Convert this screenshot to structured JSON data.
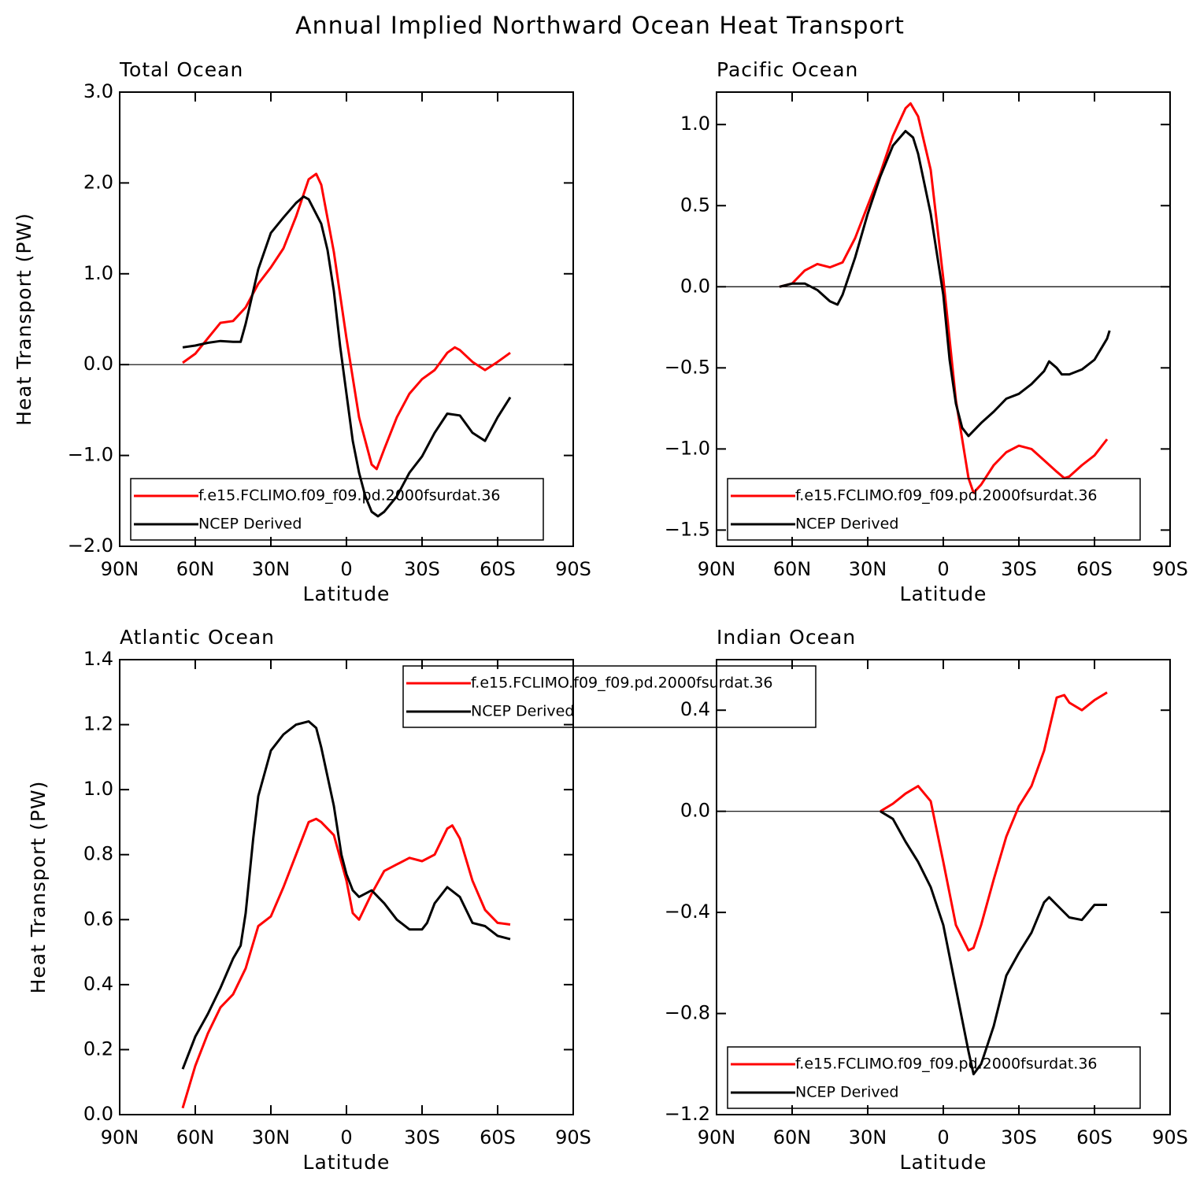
{
  "title": "Annual Implied Northward Ocean Heat Transport",
  "chart_data": [
    {
      "type": "line",
      "title": "Total Ocean",
      "x_label": "Latitude",
      "y_label": "Heat Transport (PW)",
      "xlim": [
        90,
        -90
      ],
      "xticks": [
        {
          "value": 90,
          "label": "90N"
        },
        {
          "value": 60,
          "label": "60N"
        },
        {
          "value": 30,
          "label": "30N"
        },
        0,
        {
          "value": -30,
          "label": "30S"
        },
        {
          "value": -60,
          "label": "60S"
        },
        {
          "value": -90,
          "label": "90S"
        }
      ],
      "ylim": [
        -2,
        3
      ],
      "yticks": [
        {
          "value": -2,
          "label": "−2.0"
        },
        {
          "value": -1,
          "label": "−1.0"
        },
        {
          "value": 0,
          "label": "0.0"
        },
        {
          "value": 1,
          "label": "1.0"
        },
        {
          "value": 2,
          "label": "2.0"
        },
        {
          "value": 3,
          "label": "3.0"
        }
      ],
      "zero_line": true,
      "legend": "lower-left",
      "series": [
        {
          "name": "f.e15.FCLIMO.f09_f09.pd.2000fsurdat.36",
          "color": "#ff0000",
          "x": [
            65,
            60,
            55,
            50,
            45,
            40,
            35,
            30,
            25,
            20,
            15,
            12,
            10,
            5,
            0,
            -5,
            -10,
            -12,
            -15,
            -20,
            -25,
            -30,
            -35,
            -40,
            -43,
            -45,
            -50,
            -55,
            -60,
            -65
          ],
          "values": [
            0.02,
            0.12,
            0.29,
            0.46,
            0.48,
            0.63,
            0.89,
            1.07,
            1.28,
            1.63,
            2.04,
            2.1,
            1.98,
            1.24,
            0.29,
            -0.58,
            -1.1,
            -1.15,
            -0.93,
            -0.58,
            -0.32,
            -0.16,
            -0.06,
            0.13,
            0.19,
            0.16,
            0.03,
            -0.06,
            0.03,
            0.13
          ]
        },
        {
          "name": "NCEP Derived",
          "color": "#000000",
          "x": [
            65,
            60,
            55,
            50,
            45,
            42,
            40,
            35,
            30,
            25,
            20,
            17,
            15,
            10,
            7.5,
            5,
            2.5,
            0,
            -2.5,
            -5,
            -7.5,
            -10,
            -12.5,
            -15,
            -20,
            -25,
            -30,
            -35,
            -40,
            -45,
            -50,
            -55,
            -60,
            -65
          ],
          "values": [
            0.19,
            0.21,
            0.24,
            0.26,
            0.25,
            0.25,
            0.45,
            1.05,
            1.45,
            1.62,
            1.78,
            1.85,
            1.82,
            1.55,
            1.26,
            0.81,
            0.2,
            -0.32,
            -0.84,
            -1.19,
            -1.45,
            -1.62,
            -1.67,
            -1.62,
            -1.45,
            -1.19,
            -1.01,
            -0.75,
            -0.54,
            -0.56,
            -0.75,
            -0.84,
            -0.58,
            -0.36
          ]
        }
      ]
    },
    {
      "type": "line",
      "title": "Pacific Ocean",
      "x_label": "Latitude",
      "xlim": [
        90,
        -90
      ],
      "xticks": [
        {
          "value": 90,
          "label": "90N"
        },
        {
          "value": 60,
          "label": "60N"
        },
        {
          "value": 30,
          "label": "30N"
        },
        0,
        {
          "value": -30,
          "label": "30S"
        },
        {
          "value": -60,
          "label": "60S"
        },
        {
          "value": -90,
          "label": "90S"
        }
      ],
      "ylim": [
        -1.6,
        1.2
      ],
      "yticks": [
        {
          "value": -1.5,
          "label": "−1.5"
        },
        {
          "value": -1,
          "label": "−1.0"
        },
        {
          "value": -0.5,
          "label": "−0.5"
        },
        {
          "value": 0,
          "label": "0.0"
        },
        0.5,
        {
          "value": 1,
          "label": "1.0"
        }
      ],
      "zero_line": true,
      "legend": "lower-left",
      "series": [
        {
          "name": "f.e15.FCLIMO.f09_f09.pd.2000fsurdat.36",
          "color": "#ff0000",
          "x": [
            65,
            60,
            55,
            50,
            45,
            40,
            35,
            30,
            25,
            20,
            15,
            13,
            10,
            5,
            0,
            -5,
            -10,
            -12,
            -15,
            -20,
            -25,
            -30,
            -35,
            -40,
            -45,
            -48,
            -50,
            -55,
            -60,
            -65
          ],
          "values": [
            0,
            0.02,
            0.1,
            0.14,
            0.12,
            0.15,
            0.3,
            0.5,
            0.7,
            0.93,
            1.1,
            1.13,
            1.05,
            0.72,
            0.05,
            -0.7,
            -1.18,
            -1.27,
            -1.22,
            -1.1,
            -1.02,
            -0.98,
            -1.0,
            -1.07,
            -1.14,
            -1.18,
            -1.17,
            -1.1,
            -1.04,
            -0.94
          ]
        },
        {
          "name": "NCEP Derived",
          "color": "#000000",
          "x": [
            65,
            60,
            55,
            50,
            45,
            42,
            40,
            35,
            30,
            25,
            20,
            15,
            12,
            10,
            5,
            0,
            -2.5,
            -5,
            -7.5,
            -10,
            -15,
            -20,
            -25,
            -30,
            -35,
            -40,
            -42,
            -45,
            -47,
            -50,
            -55,
            -60,
            -65,
            -66
          ],
          "values": [
            0,
            0.02,
            0.02,
            -0.02,
            -0.09,
            -0.11,
            -0.05,
            0.18,
            0.45,
            0.68,
            0.87,
            0.96,
            0.92,
            0.82,
            0.45,
            -0.05,
            -0.45,
            -0.72,
            -0.87,
            -0.92,
            -0.84,
            -0.77,
            -0.69,
            -0.66,
            -0.6,
            -0.52,
            -0.46,
            -0.5,
            -0.54,
            -0.54,
            -0.51,
            -0.45,
            -0.32,
            -0.27
          ]
        }
      ]
    },
    {
      "type": "line",
      "title": "Atlantic Ocean",
      "x_label": "Latitude",
      "y_label": "Heat Transport (PW)",
      "xlim": [
        90,
        -90
      ],
      "xticks": [
        {
          "value": 90,
          "label": "90N"
        },
        {
          "value": 60,
          "label": "60N"
        },
        {
          "value": 30,
          "label": "30N"
        },
        0,
        {
          "value": -30,
          "label": "30S"
        },
        {
          "value": -60,
          "label": "60S"
        },
        {
          "value": -90,
          "label": "90S"
        }
      ],
      "ylim": [
        0,
        1.4
      ],
      "yticks": [
        {
          "value": 0,
          "label": "0.0"
        },
        0.2,
        0.4,
        0.6,
        0.8,
        {
          "value": 1,
          "label": "1.0"
        },
        1.2,
        1.4
      ],
      "zero_line": false,
      "legend": "upper-right",
      "series": [
        {
          "name": "f.e15.FCLIMO.f09_f09.pd.2000fsurdat.36",
          "color": "#ff0000",
          "x": [
            65,
            60,
            55,
            50,
            45,
            40,
            35,
            30,
            25,
            20,
            15,
            12,
            10,
            5,
            0,
            -2.5,
            -5,
            -10,
            -15,
            -20,
            -25,
            -30,
            -35,
            -40,
            -42,
            -45,
            -50,
            -55,
            -60,
            -65
          ],
          "values": [
            0.02,
            0.15,
            0.25,
            0.33,
            0.37,
            0.45,
            0.58,
            0.61,
            0.7,
            0.8,
            0.9,
            0.91,
            0.9,
            0.86,
            0.72,
            0.62,
            0.6,
            0.68,
            0.75,
            0.77,
            0.79,
            0.78,
            0.8,
            0.88,
            0.89,
            0.85,
            0.72,
            0.63,
            0.59,
            0.585
          ]
        },
        {
          "name": "NCEP Derived",
          "color": "#000000",
          "x": [
            65,
            60,
            55,
            50,
            45,
            42,
            40,
            37,
            35,
            30,
            25,
            20,
            15,
            12,
            10,
            5,
            2,
            0,
            -2.5,
            -5,
            -10,
            -15,
            -20,
            -25,
            -30,
            -32,
            -35,
            -40,
            -45,
            -50,
            -55,
            -60,
            -65
          ],
          "values": [
            0.14,
            0.24,
            0.31,
            0.39,
            0.48,
            0.52,
            0.62,
            0.85,
            0.98,
            1.12,
            1.17,
            1.2,
            1.21,
            1.19,
            1.13,
            0.95,
            0.8,
            0.74,
            0.69,
            0.67,
            0.69,
            0.65,
            0.6,
            0.57,
            0.57,
            0.59,
            0.65,
            0.7,
            0.67,
            0.59,
            0.58,
            0.55,
            0.54
          ]
        }
      ]
    },
    {
      "type": "line",
      "title": "Indian Ocean",
      "x_label": "Latitude",
      "xlim": [
        90,
        -90
      ],
      "xticks": [
        {
          "value": 90,
          "label": "90N"
        },
        {
          "value": 60,
          "label": "60N"
        },
        {
          "value": 30,
          "label": "30N"
        },
        0,
        {
          "value": -30,
          "label": "30S"
        },
        {
          "value": -60,
          "label": "60S"
        },
        {
          "value": -90,
          "label": "90S"
        }
      ],
      "ylim": [
        -1.2,
        0.6
      ],
      "yticks": [
        {
          "value": -1.2,
          "label": "−1.2"
        },
        {
          "value": -0.8,
          "label": "−0.8"
        },
        {
          "value": -0.4,
          "label": "−0.4"
        },
        {
          "value": 0,
          "label": "0.0"
        },
        0.4
      ],
      "zero_line": true,
      "legend": "lower-left",
      "series": [
        {
          "name": "f.e15.FCLIMO.f09_f09.pd.2000fsurdat.36",
          "color": "#ff0000",
          "x": [
            25,
            20,
            15,
            10,
            5,
            0,
            -5,
            -10,
            -12,
            -15,
            -20,
            -25,
            -30,
            -35,
            -40,
            -45,
            -48,
            -50,
            -55,
            -60,
            -65
          ],
          "values": [
            0,
            0.03,
            0.07,
            0.1,
            0.04,
            -0.2,
            -0.45,
            -0.55,
            -0.54,
            -0.45,
            -0.27,
            -0.1,
            0.02,
            0.1,
            0.24,
            0.45,
            0.46,
            0.43,
            0.4,
            0.44,
            0.47
          ]
        },
        {
          "name": "NCEP Derived",
          "color": "#000000",
          "x": [
            25,
            20,
            15,
            10,
            5,
            0,
            -5,
            -10,
            -12,
            -15,
            -20,
            -25,
            -30,
            -35,
            -40,
            -42,
            -45,
            -50,
            -55,
            -60,
            -65
          ],
          "values": [
            0,
            -0.03,
            -0.12,
            -0.2,
            -0.3,
            -0.45,
            -0.7,
            -0.95,
            -1.04,
            -1.0,
            -0.85,
            -0.65,
            -0.56,
            -0.48,
            -0.36,
            -0.34,
            -0.37,
            -0.42,
            -0.43,
            -0.37,
            -0.37
          ]
        }
      ]
    }
  ]
}
